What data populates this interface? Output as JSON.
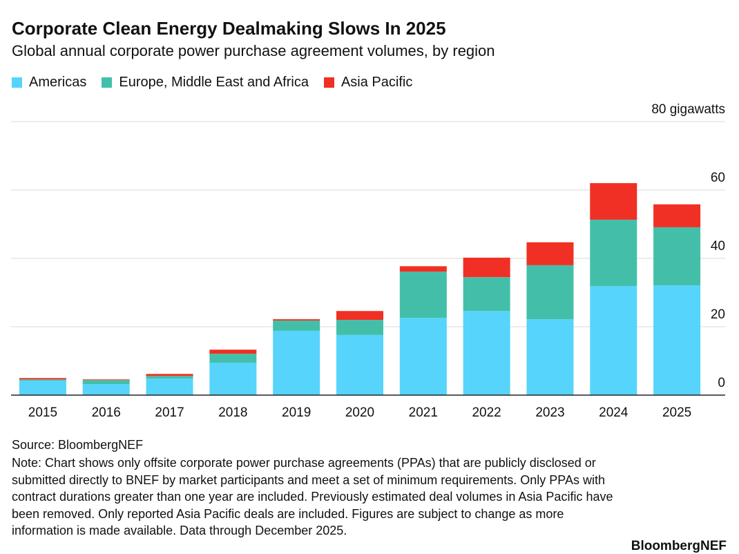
{
  "chart_data": {
    "type": "stacked_bar",
    "title": "Corporate Clean Energy Dealmaking Slows In 2025",
    "subtitle": "Global annual corporate power purchase agreement volumes, by region",
    "categories": [
      "2015",
      "2016",
      "2017",
      "2018",
      "2019",
      "2020",
      "2021",
      "2022",
      "2023",
      "2024",
      "2025"
    ],
    "series": [
      {
        "name": "Americas",
        "color": "#56d4fb",
        "values": [
          4.2,
          3.2,
          4.8,
          9.5,
          18.8,
          17.6,
          22.6,
          24.6,
          22.2,
          31.9,
          32.1
        ]
      },
      {
        "name": "Europe, Middle East and Africa",
        "color": "#43bfa9",
        "values": [
          0.4,
          1.2,
          0.8,
          2.6,
          3.0,
          4.4,
          13.5,
          9.9,
          15.8,
          19.4,
          17.0
        ]
      },
      {
        "name": "Asia Pacific",
        "color": "#f03024",
        "values": [
          0.4,
          0.2,
          0.6,
          1.2,
          0.4,
          2.6,
          1.6,
          5.7,
          6.7,
          10.7,
          6.7
        ]
      }
    ],
    "ylim": [
      0,
      80
    ],
    "yticks": [
      0,
      20,
      40,
      60,
      {
        "value": 80,
        "label": "80 gigawatts"
      }
    ],
    "grid": true,
    "source": "Source: BloombergNEF",
    "note": "Note: Chart shows only offsite corporate power purchase agreements (PPAs) that are publicly disclosed or submitted directly to BNEF by market participants and meet a set of minimum requirements. Only PPAs with contract durations greater than one year are included. Previously estimated deal volumes in Asia Pacific have been removed. Only reported Asia Pacific deals are included. Figures are subject to change as more information is made available. Data through December 2025.",
    "brand": "BloombergNEF"
  }
}
